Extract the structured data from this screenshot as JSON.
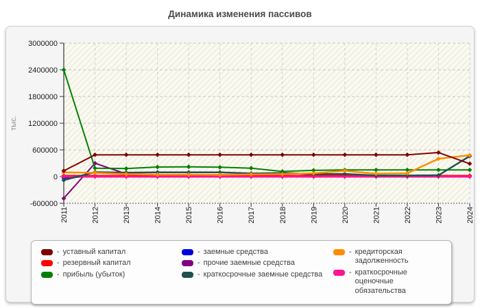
{
  "title": "Динамика изменения пассивов",
  "legend": {
    "separator": "-"
  },
  "chart_data": {
    "type": "line",
    "title": "Динамика изменения пассивов",
    "xlabel": "",
    "ylabel": "тыс.",
    "ylim": [
      -600000,
      3000000
    ],
    "ytick_step": 600000,
    "grid": true,
    "legend_position": "bottom",
    "x": [
      2011,
      2012,
      2013,
      2014,
      2015,
      2016,
      2017,
      2018,
      2019,
      2020,
      2021,
      2022,
      2023,
      2024
    ],
    "series": [
      {
        "name": "уставный капитал",
        "color": "#7f0000",
        "width": 2,
        "values": [
          130000,
          490000,
          490000,
          490000,
          490000,
          490000,
          490000,
          490000,
          490000,
          490000,
          490000,
          490000,
          540000,
          290000
        ]
      },
      {
        "name": "резервный капитал",
        "color": "#ff0000",
        "width": 2.5,
        "values": [
          20000,
          20000,
          20000,
          20000,
          20000,
          20000,
          20000,
          20000,
          20000,
          20000,
          20000,
          20000,
          20000,
          20000
        ]
      },
      {
        "name": "прибыль (убыток)",
        "color": "#008000",
        "width": 2,
        "values": [
          2400000,
          190000,
          180000,
          215000,
          220000,
          210000,
          190000,
          115000,
          140000,
          150000,
          150000,
          150000,
          150000,
          150000
        ]
      },
      {
        "name": "заемные средства",
        "color": "#0000dd",
        "width": 2,
        "values": [
          -30000,
          10000,
          5000,
          5000,
          5000,
          5000,
          5000,
          10000,
          35000,
          35000,
          8000,
          8000,
          20000,
          10000
        ]
      },
      {
        "name": "прочие заемные средства",
        "color": "#800080",
        "width": 2,
        "values": [
          -490000,
          300000,
          60000,
          0,
          0,
          0,
          0,
          0,
          0,
          0,
          0,
          0,
          0,
          0
        ]
      },
      {
        "name": "краткосрочные заемные средства",
        "color": "#205050",
        "width": 2.5,
        "values": [
          -80000,
          100000,
          90000,
          95000,
          95000,
          95000,
          70000,
          80000,
          55000,
          60000,
          25000,
          25000,
          30000,
          460000
        ]
      },
      {
        "name": "кредиторская задолженность",
        "color": "#ff8c00",
        "width": 2.5,
        "values": [
          95000,
          85000,
          55000,
          45000,
          45000,
          40000,
          50000,
          55000,
          75000,
          130000,
          65000,
          75000,
          400000,
          480000
        ]
      },
      {
        "name": "краткосрочные оценочные обязательства",
        "color": "#ff1493",
        "width": 3,
        "values": [
          0,
          0,
          0,
          0,
          0,
          0,
          0,
          0,
          0,
          0,
          0,
          0,
          0,
          0
        ]
      }
    ]
  }
}
